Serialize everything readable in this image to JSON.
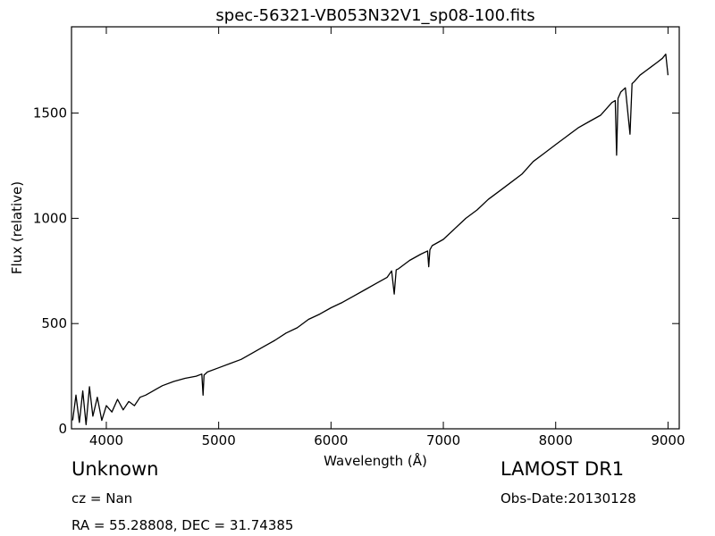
{
  "chart_data": {
    "type": "line",
    "title": "spec-56321-VB053N32V1_sp08-100.fits",
    "xlabel": "Wavelength (Å)",
    "ylabel": "Flux (relative)",
    "xlim": [
      3690,
      9100
    ],
    "ylim": [
      0,
      1910
    ],
    "xticks": [
      4000,
      5000,
      6000,
      7000,
      8000,
      9000
    ],
    "yticks": [
      0,
      500,
      1000,
      1500
    ],
    "grid": false,
    "line_color": "#000000",
    "series": [
      {
        "x": [
          3700,
          3730,
          3760,
          3790,
          3820,
          3850,
          3880,
          3920,
          3960,
          4000,
          4050,
          4100,
          4150,
          4200,
          4250,
          4300,
          4350,
          4400,
          4450,
          4500,
          4600,
          4700,
          4800,
          4850,
          4861,
          4870,
          4900,
          5000,
          5100,
          5200,
          5300,
          5400,
          5500,
          5600,
          5700,
          5800,
          5900,
          6000,
          6100,
          6200,
          6300,
          6400,
          6500,
          6540,
          6563,
          6580,
          6600,
          6700,
          6800,
          6860,
          6870,
          6880,
          6900,
          7000,
          7100,
          7200,
          7300,
          7400,
          7500,
          7600,
          7700,
          7800,
          7900,
          8000,
          8100,
          8200,
          8300,
          8400,
          8450,
          8500,
          8530,
          8542,
          8555,
          8580,
          8620,
          8662,
          8680,
          8700,
          8750,
          8800,
          8850,
          8900,
          8950,
          8980,
          9000
        ],
        "y": [
          40,
          160,
          30,
          180,
          20,
          200,
          60,
          150,
          40,
          110,
          80,
          140,
          90,
          130,
          110,
          150,
          160,
          175,
          190,
          205,
          225,
          240,
          250,
          260,
          160,
          255,
          270,
          290,
          310,
          330,
          360,
          390,
          420,
          455,
          480,
          520,
          545,
          575,
          600,
          630,
          660,
          690,
          720,
          750,
          640,
          755,
          760,
          800,
          830,
          845,
          770,
          850,
          870,
          900,
          950,
          1000,
          1040,
          1090,
          1130,
          1170,
          1210,
          1270,
          1310,
          1350,
          1390,
          1430,
          1460,
          1490,
          1520,
          1550,
          1560,
          1300,
          1570,
          1600,
          1620,
          1400,
          1640,
          1650,
          1680,
          1700,
          1720,
          1740,
          1760,
          1780,
          1680
        ]
      }
    ]
  },
  "info": {
    "class": "Unknown",
    "survey": "LAMOST DR1",
    "cz": "cz = Nan",
    "obs_date": "Obs-Date:20130128",
    "ra_dec": "RA = 55.28808, DEC = 31.74385"
  }
}
